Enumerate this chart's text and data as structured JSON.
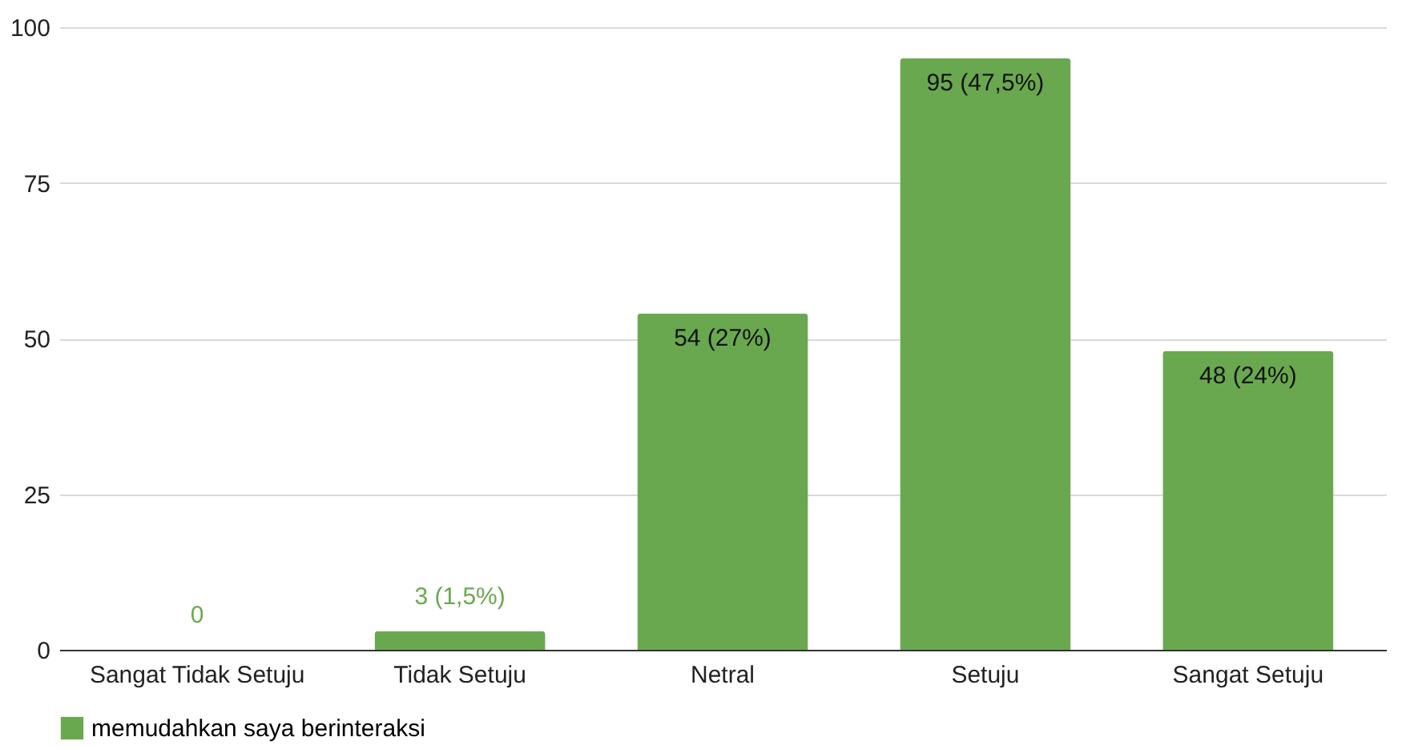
{
  "chart_data": {
    "type": "bar",
    "categories": [
      "Sangat Tidak Setuju",
      "Tidak Setuju",
      "Netral",
      "Setuju",
      "Sangat Setuju"
    ],
    "series": [
      {
        "name": "memudahkan saya berinteraksi",
        "color": "#6aa84f",
        "values": [
          0,
          3,
          54,
          95,
          48
        ],
        "value_labels": [
          "0",
          "3 (1,5%)",
          "54 (27%)",
          "95 (47,5%)",
          "48 (24%)"
        ]
      }
    ],
    "ylim": [
      0,
      100
    ],
    "yticks": [
      0,
      25,
      50,
      75,
      100
    ],
    "grid": "y",
    "legend": "bottom"
  }
}
